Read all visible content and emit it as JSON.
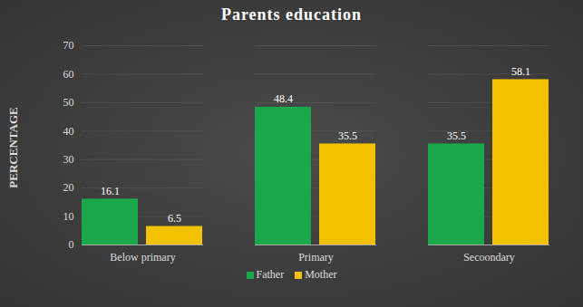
{
  "chart_data": {
    "type": "bar",
    "title": "Parents education",
    "categories": [
      "Below primary",
      "Primary",
      "Secoondary"
    ],
    "series": [
      {
        "name": "Father",
        "color": "#1aa84a",
        "values": [
          16.1,
          48.4,
          35.5
        ]
      },
      {
        "name": "Mother",
        "color": "#f2c200",
        "values": [
          6.5,
          35.5,
          58.1
        ]
      }
    ],
    "ylabel": "PERCENTAGE",
    "ylim": [
      0,
      70
    ],
    "yticks": [
      0,
      10,
      20,
      30,
      40,
      50,
      60,
      70
    ],
    "grid": true,
    "data_labels": true,
    "legend": "bottom"
  }
}
